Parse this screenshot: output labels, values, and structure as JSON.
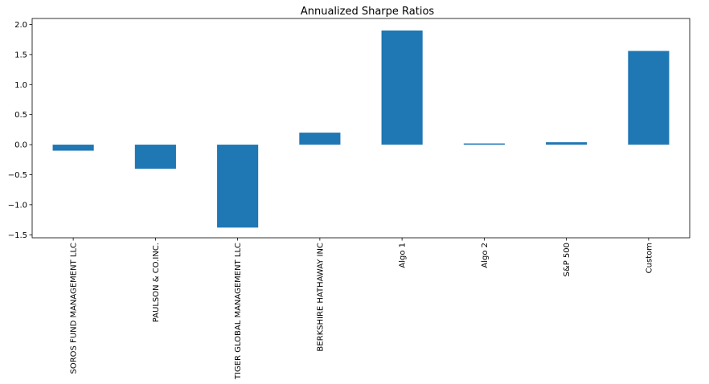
{
  "chart_data": {
    "type": "bar",
    "title": "Annualized Sharpe Ratios",
    "xlabel": "",
    "ylabel": "",
    "categories": [
      "SOROS FUND MANAGEMENT LLC",
      "PAULSON & CO.INC.",
      "TIGER GLOBAL MANAGEMENT LLC",
      "BERKSHIRE HATHAWAY INC",
      "Algo 1",
      "Algo 2",
      "S&P 500",
      "Custom"
    ],
    "values": [
      -0.1,
      -0.4,
      -1.38,
      0.2,
      1.9,
      0.02,
      0.04,
      1.56
    ],
    "ylim": [
      -1.55,
      2.1
    ],
    "yticks": [
      -1.5,
      -1.0,
      -0.5,
      0.0,
      0.5,
      1.0,
      1.5,
      2.0
    ],
    "ytick_labels": [
      "−1.5",
      "−1.0",
      "−0.5",
      "0.0",
      "0.5",
      "1.0",
      "1.5",
      "2.0"
    ],
    "grid": false,
    "colors": {
      "bar": "#1f77b4",
      "axis": "#000000",
      "background": "#ffffff"
    }
  }
}
